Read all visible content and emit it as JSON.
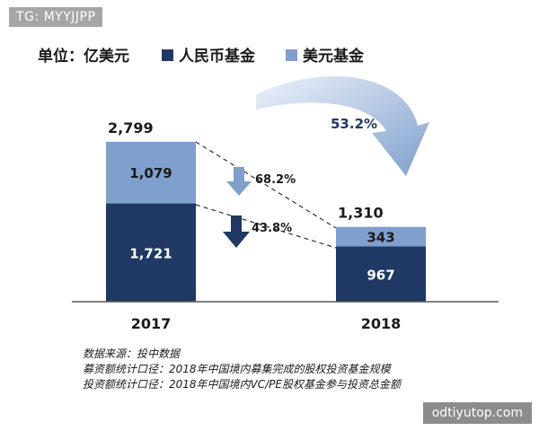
{
  "watermarks": {
    "top": "TG: MYYJJPP",
    "bottom": "odtiyutop.com"
  },
  "chart_data": {
    "type": "bar",
    "stacked": true,
    "unit_label": "单位：亿美元",
    "categories": [
      "2017",
      "2018"
    ],
    "series": [
      {
        "name": "人民币基金",
        "values": [
          1721,
          967
        ],
        "color": "#1f3864"
      },
      {
        "name": "美元基金",
        "values": [
          1079,
          343
        ],
        "color": "#7f9fcc"
      }
    ],
    "totals": [
      "2,799",
      "1,310"
    ],
    "value_labels": {
      "人民币基金": [
        "1,721",
        "967"
      ],
      "美元基金": [
        "1,079",
        "343"
      ]
    },
    "ylim": [
      0,
      3000
    ],
    "grid": false,
    "legend_placement": "top",
    "annotations": {
      "usd_change": "68.2%",
      "rmb_change": "43.8%",
      "total_change": "53.2%"
    },
    "notes": [
      "数据来源：投中数据",
      "募资额统计口径：2018年中国境内募集完成的股权投资基金规模",
      "投资额统计口径：2018年中国境内VC/PE股权基金参与投资总金额"
    ]
  }
}
